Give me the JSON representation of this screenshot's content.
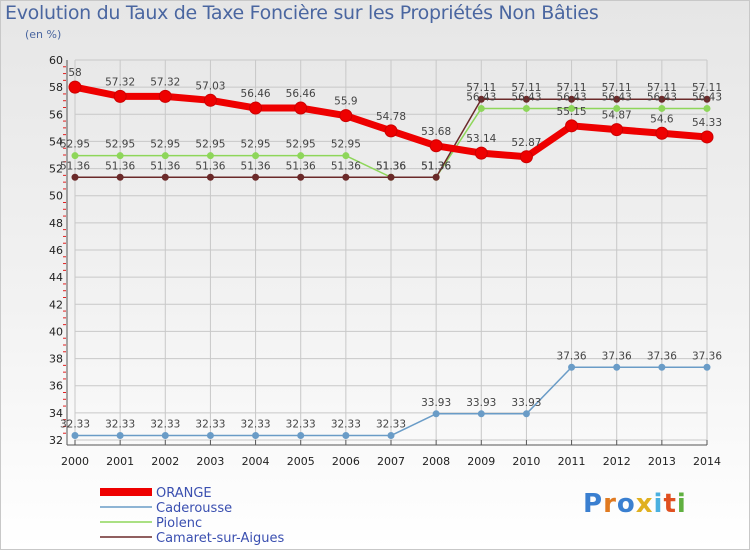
{
  "header": {
    "title": "Evolution du Taux de Taxe Foncière sur les Propriétés Non Bâties",
    "subtitle": "(en %)"
  },
  "logo": {
    "text": "Proxiti"
  },
  "colors": {
    "ORANGE": "#ee0000",
    "Caderousse": "#6a9cc7",
    "Piolenc": "#8ed65a",
    "Camaret-sur-Aigues": "#6b2a2a",
    "grid": "#c8c8c8",
    "tick_red": "#e02020"
  },
  "chart_data": {
    "type": "line",
    "title": "Evolution du Taux de Taxe Foncière sur les Propriétés Non Bâties",
    "ylabel": "(en %)",
    "xlabel": "",
    "ylim": [
      32,
      60
    ],
    "yticks": [
      32,
      34,
      36,
      38,
      40,
      42,
      44,
      46,
      48,
      50,
      52,
      54,
      56,
      58,
      60
    ],
    "x": [
      "2000",
      "2001",
      "2002",
      "2003",
      "2004",
      "2005",
      "2006",
      "2007",
      "2008",
      "2009",
      "2010",
      "2011",
      "2012",
      "2013",
      "2014"
    ],
    "grid": true,
    "legend_position": "bottom-left",
    "series": [
      {
        "name": "ORANGE",
        "values": [
          58,
          57.32,
          57.32,
          57.03,
          56.46,
          56.46,
          55.9,
          54.78,
          53.68,
          53.14,
          52.87,
          55.15,
          54.87,
          54.6,
          54.33
        ],
        "labels": [
          "58",
          "57.32",
          "57.32",
          "57.03",
          "56.46",
          "56.46",
          "55.9",
          "54.78",
          "53.68",
          "53.14",
          "52.87",
          "55.15",
          "54.87",
          "54.6",
          "54.33"
        ]
      },
      {
        "name": "Caderousse",
        "values": [
          32.33,
          32.33,
          32.33,
          32.33,
          32.33,
          32.33,
          32.33,
          32.33,
          33.93,
          33.93,
          33.93,
          37.36,
          37.36,
          37.36,
          37.36
        ],
        "labels": [
          "32.33",
          "32.33",
          "32.33",
          "32.33",
          "32.33",
          "32.33",
          "32.33",
          "32.33",
          "33.93",
          "33.93",
          "33.93",
          "37.36",
          "37.36",
          "37.36",
          "37.36"
        ]
      },
      {
        "name": "Piolenc",
        "values": [
          52.95,
          52.95,
          52.95,
          52.95,
          52.95,
          52.95,
          52.95,
          51.36,
          51.36,
          56.43,
          56.43,
          56.43,
          56.43,
          56.43,
          56.43
        ],
        "labels": [
          "52.95",
          "52.95",
          "52.95",
          "52.95",
          "52.95",
          "52.95",
          "52.95",
          "51.36",
          "51.36",
          "56.43",
          "56.43",
          "56.43",
          "56.43",
          "56.43",
          "56.43"
        ]
      },
      {
        "name": "Camaret-sur-Aigues",
        "values": [
          51.36,
          51.36,
          51.36,
          51.36,
          51.36,
          51.36,
          51.36,
          51.36,
          51.36,
          57.11,
          57.11,
          57.11,
          57.11,
          57.11,
          57.11
        ],
        "labels": [
          "51.36",
          "51.36",
          "51.36",
          "51.36",
          "51.36",
          "51.36",
          "51.36",
          "51.36",
          "51.36",
          "57.11",
          "57.11",
          "57.11",
          "57.11",
          "57.11",
          "57.11"
        ]
      }
    ]
  }
}
